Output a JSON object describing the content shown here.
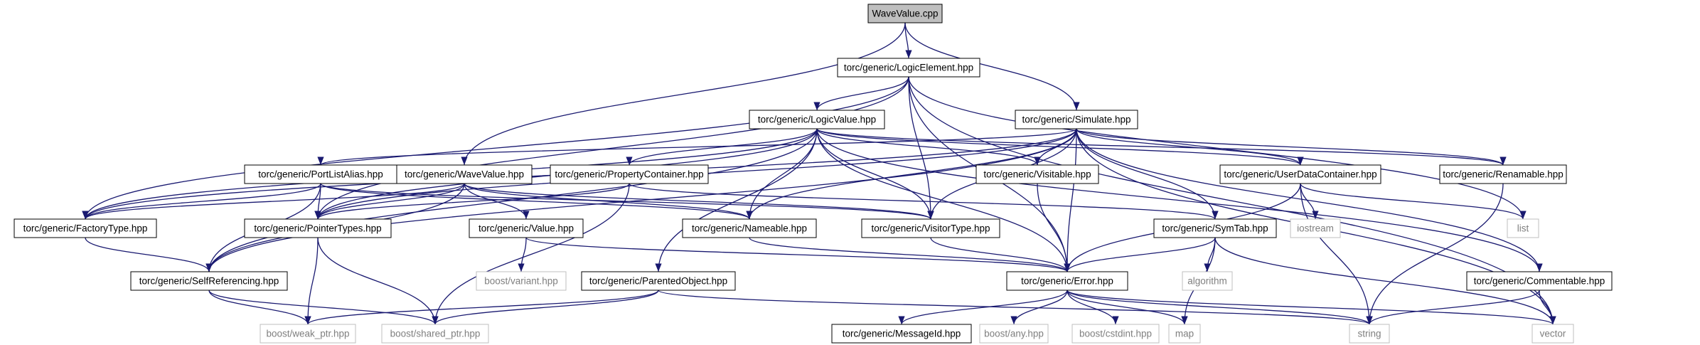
{
  "nodes": [
    {
      "id": "wavevalue_cpp",
      "label": "WaveValue.cpp",
      "kind": "root"
    },
    {
      "id": "logic_element",
      "label": "torc/generic/LogicElement.hpp",
      "kind": "local"
    },
    {
      "id": "logic_value",
      "label": "torc/generic/LogicValue.hpp",
      "kind": "local"
    },
    {
      "id": "simulate",
      "label": "torc/generic/Simulate.hpp",
      "kind": "local"
    },
    {
      "id": "port_list_alias",
      "label": "torc/generic/PortListAlias.hpp",
      "kind": "local"
    },
    {
      "id": "wave_value",
      "label": "torc/generic/WaveValue.hpp",
      "kind": "local"
    },
    {
      "id": "property_container",
      "label": "torc/generic/PropertyContainer.hpp",
      "kind": "local"
    },
    {
      "id": "visitable",
      "label": "torc/generic/Visitable.hpp",
      "kind": "local"
    },
    {
      "id": "user_data_container",
      "label": "torc/generic/UserDataContainer.hpp",
      "kind": "local"
    },
    {
      "id": "renamable",
      "label": "torc/generic/Renamable.hpp",
      "kind": "local"
    },
    {
      "id": "factory_type",
      "label": "torc/generic/FactoryType.hpp",
      "kind": "local"
    },
    {
      "id": "pointer_types",
      "label": "torc/generic/PointerTypes.hpp",
      "kind": "local"
    },
    {
      "id": "nameable",
      "label": "torc/generic/Nameable.hpp",
      "kind": "local"
    },
    {
      "id": "visitor_type",
      "label": "torc/generic/VisitorType.hpp",
      "kind": "local"
    },
    {
      "id": "sym_tab",
      "label": "torc/generic/SymTab.hpp",
      "kind": "local"
    },
    {
      "id": "iostream",
      "label": "iostream",
      "kind": "external"
    },
    {
      "id": "list",
      "label": "list",
      "kind": "external"
    },
    {
      "id": "value",
      "label": "torc/generic/Value.hpp",
      "kind": "local"
    },
    {
      "id": "boost_variant",
      "label": "boost/variant.hpp",
      "kind": "external"
    },
    {
      "id": "self_referencing",
      "label": "torc/generic/SelfReferencing.hpp",
      "kind": "local"
    },
    {
      "id": "parented_object",
      "label": "torc/generic/ParentedObject.hpp",
      "kind": "local"
    },
    {
      "id": "error",
      "label": "torc/generic/Error.hpp",
      "kind": "local"
    },
    {
      "id": "algorithm",
      "label": "algorithm",
      "kind": "external"
    },
    {
      "id": "commentable",
      "label": "torc/generic/Commentable.hpp",
      "kind": "local"
    },
    {
      "id": "boost_weak_ptr",
      "label": "boost/weak_ptr.hpp",
      "kind": "external"
    },
    {
      "id": "boost_shared_ptr",
      "label": "boost/shared_ptr.hpp",
      "kind": "external"
    },
    {
      "id": "message_id",
      "label": "torc/generic/MessageId.hpp",
      "kind": "local"
    },
    {
      "id": "boost_any",
      "label": "boost/any.hpp",
      "kind": "external"
    },
    {
      "id": "boost_cstdint",
      "label": "boost/cstdint.hpp",
      "kind": "external"
    },
    {
      "id": "map",
      "label": "map",
      "kind": "external"
    },
    {
      "id": "string",
      "label": "string",
      "kind": "external"
    },
    {
      "id": "vector",
      "label": "vector",
      "kind": "external"
    }
  ],
  "edges": [
    [
      "wavevalue_cpp",
      "logic_element"
    ],
    [
      "wavevalue_cpp",
      "simulate"
    ],
    [
      "wavevalue_cpp",
      "wave_value"
    ],
    [
      "logic_element",
      "logic_value"
    ],
    [
      "logic_element",
      "factory_type"
    ],
    [
      "logic_element",
      "pointer_types"
    ],
    [
      "logic_element",
      "visitor_type"
    ],
    [
      "logic_element",
      "error"
    ],
    [
      "logic_element",
      "list"
    ],
    [
      "logic_element",
      "vector"
    ],
    [
      "logic_value",
      "factory_type"
    ],
    [
      "logic_value",
      "pointer_types"
    ],
    [
      "logic_value",
      "self_referencing"
    ],
    [
      "logic_value",
      "property_container"
    ],
    [
      "logic_value",
      "visitable"
    ],
    [
      "logic_value",
      "user_data_container"
    ],
    [
      "logic_value",
      "renamable"
    ],
    [
      "logic_value",
      "commentable"
    ],
    [
      "logic_value",
      "nameable"
    ],
    [
      "logic_value",
      "visitor_type"
    ],
    [
      "logic_value",
      "parented_object"
    ],
    [
      "logic_value",
      "error"
    ],
    [
      "simulate",
      "port_list_alias"
    ],
    [
      "simulate",
      "factory_type"
    ],
    [
      "simulate",
      "pointer_types"
    ],
    [
      "simulate",
      "self_referencing"
    ],
    [
      "simulate",
      "visitable"
    ],
    [
      "simulate",
      "user_data_container"
    ],
    [
      "simulate",
      "renamable"
    ],
    [
      "simulate",
      "commentable"
    ],
    [
      "simulate",
      "nameable"
    ],
    [
      "simulate",
      "visitor_type"
    ],
    [
      "simulate",
      "sym_tab"
    ],
    [
      "simulate",
      "error"
    ],
    [
      "simulate",
      "vector"
    ],
    [
      "port_list_alias",
      "factory_type"
    ],
    [
      "port_list_alias",
      "pointer_types"
    ],
    [
      "port_list_alias",
      "self_referencing"
    ],
    [
      "port_list_alias",
      "nameable"
    ],
    [
      "port_list_alias",
      "visitor_type"
    ],
    [
      "wave_value",
      "factory_type"
    ],
    [
      "wave_value",
      "pointer_types"
    ],
    [
      "wave_value",
      "self_referencing"
    ],
    [
      "wave_value",
      "value"
    ],
    [
      "wave_value",
      "nameable"
    ],
    [
      "wave_value",
      "visitor_type"
    ],
    [
      "property_container",
      "pointer_types"
    ],
    [
      "property_container",
      "sym_tab"
    ],
    [
      "property_container",
      "boost_shared_ptr"
    ],
    [
      "visitable",
      "error"
    ],
    [
      "user_data_container",
      "error"
    ],
    [
      "user_data_container",
      "iostream"
    ],
    [
      "user_data_container",
      "list"
    ],
    [
      "user_data_container",
      "string"
    ],
    [
      "renamable",
      "string"
    ],
    [
      "factory_type",
      "self_referencing"
    ],
    [
      "pointer_types",
      "boost_weak_ptr"
    ],
    [
      "pointer_types",
      "boost_shared_ptr"
    ],
    [
      "nameable",
      "error"
    ],
    [
      "visitor_type",
      "error"
    ],
    [
      "sym_tab",
      "error"
    ],
    [
      "sym_tab",
      "algorithm"
    ],
    [
      "sym_tab",
      "map"
    ],
    [
      "sym_tab",
      "vector"
    ],
    [
      "value",
      "boost_variant"
    ],
    [
      "value",
      "error"
    ],
    [
      "self_referencing",
      "boost_weak_ptr"
    ],
    [
      "self_referencing",
      "boost_shared_ptr"
    ],
    [
      "parented_object",
      "boost_weak_ptr"
    ],
    [
      "parented_object",
      "boost_shared_ptr"
    ],
    [
      "parented_object",
      "string"
    ],
    [
      "error",
      "message_id"
    ],
    [
      "error",
      "boost_any"
    ],
    [
      "error",
      "boost_cstdint"
    ],
    [
      "error",
      "map"
    ],
    [
      "error",
      "string"
    ],
    [
      "error",
      "vector"
    ],
    [
      "commentable",
      "string"
    ],
    [
      "commentable",
      "vector"
    ]
  ]
}
